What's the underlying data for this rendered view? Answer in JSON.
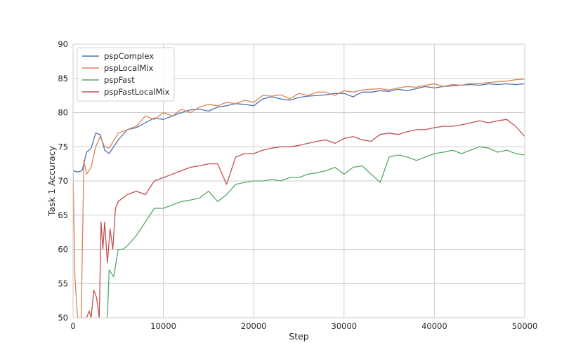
{
  "chart_data": {
    "type": "line",
    "title": "",
    "xlabel": "Step",
    "ylabel": "Task 1 Accuracy",
    "xlim": [
      0,
      50000
    ],
    "ylim": [
      50,
      90
    ],
    "xticks": [
      0,
      10000,
      20000,
      30000,
      40000,
      50000
    ],
    "yticks": [
      50,
      55,
      60,
      65,
      70,
      75,
      80,
      85,
      90
    ],
    "grid": true,
    "legend_position": "top-left",
    "series": [
      {
        "name": "pspComplex",
        "color": "#4c72b0",
        "x": [
          0,
          500,
          1000,
          1500,
          2000,
          2500,
          3000,
          3500,
          4000,
          5000,
          6000,
          7000,
          8000,
          9000,
          10000,
          11000,
          12000,
          13000,
          14000,
          15000,
          16000,
          17000,
          18000,
          19000,
          20000,
          21000,
          22000,
          23000,
          24000,
          25000,
          26000,
          27000,
          28000,
          29000,
          30000,
          31000,
          32000,
          33000,
          34000,
          35000,
          36000,
          37000,
          38000,
          39000,
          40000,
          41000,
          42000,
          43000,
          44000,
          45000,
          46000,
          47000,
          48000,
          49000,
          50000
        ],
        "y": [
          71.5,
          71.3,
          71.5,
          74.2,
          74.8,
          77.0,
          76.8,
          74.5,
          74.0,
          76.0,
          77.5,
          77.8,
          78.5,
          79.2,
          79.0,
          79.5,
          80.0,
          80.4,
          80.5,
          80.2,
          80.8,
          81.0,
          81.3,
          81.2,
          81.0,
          82.0,
          82.3,
          82.0,
          81.8,
          82.2,
          82.4,
          82.5,
          82.6,
          82.8,
          82.8,
          82.3,
          83.0,
          83.0,
          83.2,
          83.1,
          83.4,
          83.2,
          83.5,
          83.8,
          83.6,
          83.8,
          83.9,
          84.0,
          84.1,
          84.0,
          84.2,
          84.1,
          84.2,
          84.1,
          84.2
        ]
      },
      {
        "name": "pspLocalMix",
        "color": "#dd8452",
        "x": [
          0,
          200,
          500,
          900,
          1200,
          1500,
          2000,
          2500,
          3000,
          3500,
          4000,
          5000,
          6000,
          7000,
          8000,
          9000,
          10000,
          11000,
          12000,
          13000,
          14000,
          15000,
          16000,
          17000,
          18000,
          19000,
          20000,
          21000,
          22000,
          23000,
          24000,
          25000,
          26000,
          27000,
          28000,
          29000,
          30000,
          31000,
          32000,
          33000,
          34000,
          35000,
          36000,
          37000,
          38000,
          39000,
          40000,
          41000,
          42000,
          43000,
          44000,
          45000,
          46000,
          47000,
          48000,
          49000,
          50000
        ],
        "y": [
          71.5,
          56.0,
          50.0,
          50.0,
          73.0,
          71.0,
          72.0,
          75.0,
          76.5,
          75.0,
          74.8,
          77.0,
          77.5,
          78.0,
          79.5,
          79.0,
          80.0,
          79.5,
          80.5,
          80.0,
          80.8,
          81.2,
          81.0,
          81.5,
          81.3,
          81.8,
          81.5,
          82.5,
          82.4,
          82.6,
          82.0,
          82.8,
          82.5,
          83.0,
          83.0,
          82.5,
          83.2,
          83.0,
          83.3,
          83.4,
          83.5,
          83.3,
          83.6,
          83.8,
          83.7,
          84.0,
          84.2,
          83.8,
          84.1,
          84.0,
          84.3,
          84.2,
          84.4,
          84.5,
          84.6,
          84.8,
          84.9
        ]
      },
      {
        "name": "pspFast",
        "color": "#55a868",
        "x": [
          3800,
          4000,
          4500,
          5000,
          5500,
          6000,
          7000,
          8000,
          9000,
          10000,
          11000,
          12000,
          13000,
          14000,
          15000,
          16000,
          17000,
          18000,
          19000,
          20000,
          21000,
          22000,
          23000,
          24000,
          25000,
          26000,
          27000,
          28000,
          29000,
          30000,
          31000,
          32000,
          33000,
          34000,
          35000,
          36000,
          37000,
          38000,
          39000,
          40000,
          41000,
          42000,
          43000,
          44000,
          45000,
          46000,
          47000,
          48000,
          49000,
          50000
        ],
        "y": [
          50.0,
          57.0,
          56.0,
          60.0,
          60.0,
          60.5,
          62.0,
          64.0,
          66.0,
          66.0,
          66.5,
          67.0,
          67.2,
          67.5,
          68.5,
          67.0,
          68.0,
          69.5,
          69.8,
          70.0,
          70.0,
          70.2,
          70.0,
          70.5,
          70.5,
          71.0,
          71.2,
          71.5,
          72.0,
          71.0,
          72.0,
          72.2,
          71.0,
          69.8,
          73.5,
          73.8,
          73.5,
          73.0,
          73.5,
          74.0,
          74.2,
          74.5,
          74.0,
          74.5,
          75.0,
          74.8,
          74.2,
          74.5,
          74.0,
          73.8
        ]
      },
      {
        "name": "pspFastLocalMix",
        "color": "#c44e52",
        "x": [
          1500,
          1800,
          2000,
          2300,
          2600,
          2900,
          3100,
          3300,
          3500,
          3800,
          4100,
          4400,
          4700,
          5000,
          6000,
          7000,
          8000,
          9000,
          10000,
          11000,
          12000,
          13000,
          14000,
          15000,
          16000,
          17000,
          18000,
          19000,
          20000,
          21000,
          22000,
          23000,
          24000,
          25000,
          26000,
          27000,
          28000,
          29000,
          30000,
          31000,
          32000,
          33000,
          34000,
          35000,
          36000,
          37000,
          38000,
          39000,
          40000,
          41000,
          42000,
          43000,
          44000,
          45000,
          46000,
          47000,
          48000,
          49000,
          50000
        ],
        "y": [
          50.0,
          51.0,
          50.0,
          54.0,
          53.0,
          50.0,
          64.0,
          60.0,
          64.0,
          58.0,
          63.0,
          60.0,
          66.0,
          67.0,
          68.0,
          68.5,
          68.0,
          70.0,
          70.5,
          71.0,
          71.5,
          72.0,
          72.2,
          72.5,
          72.5,
          69.5,
          73.5,
          74.0,
          74.0,
          74.5,
          74.8,
          75.0,
          75.0,
          75.2,
          75.5,
          75.8,
          76.0,
          75.5,
          76.2,
          76.5,
          76.0,
          75.8,
          76.8,
          77.0,
          76.8,
          77.2,
          77.5,
          77.5,
          77.8,
          78.0,
          78.0,
          78.2,
          78.5,
          78.8,
          78.5,
          78.8,
          79.0,
          78.0,
          76.5
        ]
      }
    ]
  }
}
